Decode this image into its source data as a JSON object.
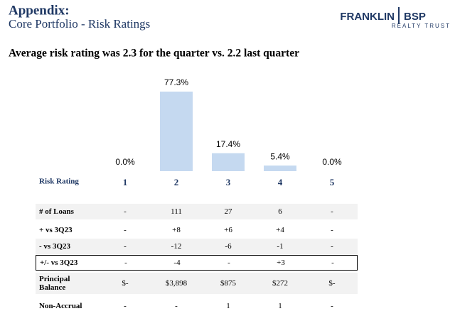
{
  "header": {
    "title": "Appendix:",
    "subtitle": "Core Portfolio - Risk Ratings"
  },
  "logo": {
    "name_left": "FRANKLIN",
    "name_right": "BSP",
    "tagline": "REALTY TRUST"
  },
  "headline": "Average risk rating was 2.3 for the quarter vs. 2.2 last quarter",
  "chart_data": {
    "type": "bar",
    "x_label": "Risk Rating",
    "categories": [
      "1",
      "2",
      "3",
      "4",
      "5"
    ],
    "values": [
      0,
      77.3,
      17.4,
      5.4,
      0
    ],
    "value_labels": [
      "0.0%",
      "77.3%",
      "17.4%",
      "5.4%",
      "0.0%"
    ],
    "color": "#c5d9f0"
  },
  "table": {
    "rows": [
      {
        "label": "# of Loans",
        "cells": [
          "-",
          "111",
          "27",
          "6",
          "-"
        ]
      },
      {
        "label": "+ vs 3Q23",
        "cells": [
          "-",
          "+8",
          "+6",
          "+4",
          "-"
        ]
      },
      {
        "label": "- vs 3Q23",
        "cells": [
          "-",
          "-12",
          "-6",
          "-1",
          "-"
        ]
      },
      {
        "label": "+/- vs 3Q23",
        "cells": [
          "-",
          "-4",
          "-",
          "+3",
          "-"
        ]
      },
      {
        "label": "Principal Balance",
        "cells": [
          "$-",
          "$3,898",
          "$875",
          "$272",
          "$-"
        ]
      },
      {
        "label": "Non-Accrual",
        "cells": [
          "-",
          "-",
          "1",
          "1",
          "-"
        ]
      }
    ]
  }
}
